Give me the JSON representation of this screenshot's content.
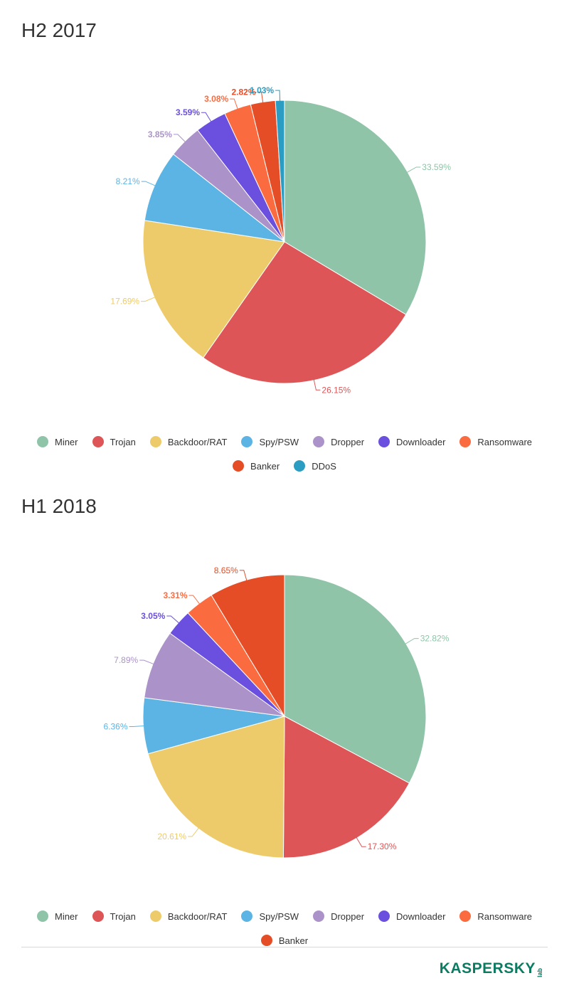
{
  "chart_data": [
    {
      "type": "pie",
      "title": "H2 2017",
      "categories": [
        "Miner",
        "Trojan",
        "Backdoor/RAT",
        "Spy/PSW",
        "Dropper",
        "Downloader",
        "Ransomware",
        "Banker",
        "DDoS"
      ],
      "values": [
        33.59,
        26.15,
        17.69,
        8.21,
        3.85,
        3.59,
        3.08,
        2.82,
        1.03
      ],
      "labels": [
        "33.59%",
        "26.15%",
        "17.69%",
        "8.21%",
        "3.85%",
        "3.59%",
        "3.08%",
        "2.82%",
        "1.03%"
      ],
      "colors": [
        "#8fc4a8",
        "#de5557",
        "#eecb6a",
        "#5cb4e4",
        "#ab93c9",
        "#6b4fde",
        "#fb6b40",
        "#e54d26",
        "#2b9cc2"
      ],
      "legend_position": "bottom"
    },
    {
      "type": "pie",
      "title": "H1 2018",
      "categories": [
        "Miner",
        "Trojan",
        "Backdoor/RAT",
        "Spy/PSW",
        "Dropper",
        "Downloader",
        "Ransomware",
        "Banker"
      ],
      "values": [
        32.82,
        17.3,
        20.61,
        6.36,
        7.89,
        3.05,
        3.31,
        8.65
      ],
      "labels": [
        "32.82%",
        "17.30%",
        "20.61%",
        "6.36%",
        "7.89%",
        "3.05%",
        "3.31%",
        "8.65%"
      ],
      "colors": [
        "#8fc4a8",
        "#de5557",
        "#eecb6a",
        "#5cb4e4",
        "#ab93c9",
        "#6b4fde",
        "#fb6b40",
        "#e54d26"
      ],
      "legend_position": "bottom"
    }
  ],
  "logo": {
    "word": "KASPERSKY",
    "suffix": "lab"
  }
}
